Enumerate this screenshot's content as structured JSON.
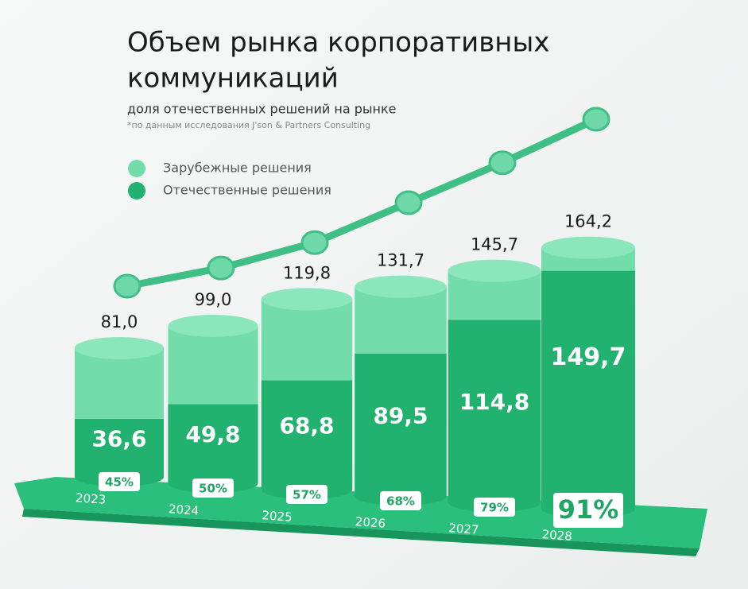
{
  "chart_data": {
    "type": "stacked-cylinder",
    "title": [
      "Объем рынка корпоративных",
      "коммуникаций"
    ],
    "subtitle": "доля отечественных решений на рынке",
    "note": "*по данным исследования J'son & Partners Consulting",
    "categories": [
      "2023",
      "2024",
      "2025",
      "2026",
      "2027",
      "2028"
    ],
    "series": [
      {
        "name": "Отечественные решения",
        "color": "#22b26f",
        "values": [
          36.6,
          49.8,
          68.8,
          89.5,
          114.8,
          149.7
        ],
        "value_labels": [
          "36,6",
          "49,8",
          "68,8",
          "89,5",
          "114,8",
          "149,7"
        ]
      },
      {
        "name": "Зарубежные решения",
        "color": "#72dcaa",
        "values": [
          44.4,
          49.2,
          51.0,
          42.2,
          30.9,
          14.5
        ]
      }
    ],
    "totals": {
      "values": [
        81.0,
        99.0,
        119.8,
        131.7,
        145.7,
        164.2
      ],
      "value_labels": [
        "81,0",
        "99,0",
        "119,8",
        "131,7",
        "145,7",
        "164,2"
      ]
    },
    "shares": {
      "color": "#3fbf86",
      "values": [
        45,
        50,
        57,
        68,
        79,
        91
      ],
      "value_labels": [
        "45%",
        "50%",
        "57%",
        "68%",
        "79%",
        "91%"
      ]
    }
  }
}
